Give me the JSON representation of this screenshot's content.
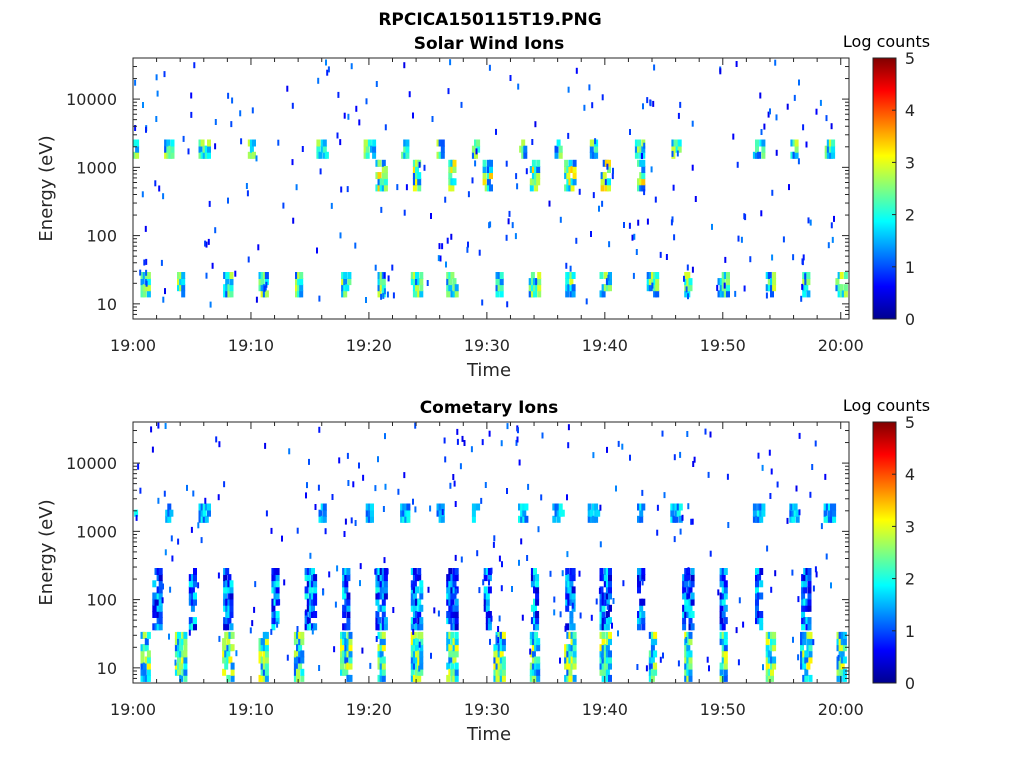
{
  "figure": {
    "title": "RPCICA150115T19.PNG"
  },
  "chart_data": [
    {
      "type": "heatmap",
      "title": "Solar Wind Ions",
      "xlabel": "Time",
      "ylabel": "Energy (eV)",
      "x_tick_labels": [
        "19:00",
        "19:10",
        "19:20",
        "19:30",
        "19:40",
        "19:50",
        "20:00"
      ],
      "xlim": [
        "19:00",
        "20:00"
      ],
      "y_scale": "log",
      "y_tick_values": [
        10,
        100,
        1000,
        10000
      ],
      "y_tick_labels": [
        "10",
        "100",
        "1000",
        "10000"
      ],
      "ylim": [
        6,
        40000
      ],
      "colorbar": {
        "label": "Log counts",
        "range": [
          0,
          5
        ],
        "tick_labels": [
          "0",
          "1",
          "2",
          "3",
          "4",
          "5"
        ],
        "colormap": "jet"
      },
      "approx_features": [
        {
          "energy_eV": [
            14,
            28
          ],
          "log_counts": [
            1,
            3
          ],
          "description": "low-energy band, every ~3.3 min",
          "times": [
            "19:01",
            "19:04",
            "19:08",
            "19:11",
            "19:14",
            "19:18",
            "19:21",
            "19:24",
            "19:27",
            "19:31",
            "19:34",
            "19:37",
            "19:40",
            "19:44",
            "19:47",
            "19:50",
            "19:54",
            "19:57",
            "20:00"
          ]
        },
        {
          "energy_eV": [
            1500,
            2500
          ],
          "log_counts": [
            1,
            3
          ],
          "times": [
            "19:00",
            "19:03",
            "19:06",
            "19:10",
            "19:16",
            "19:20",
            "19:23",
            "19:26",
            "19:29",
            "19:33",
            "19:36",
            "19:39",
            "19:43",
            "19:46",
            "19:53",
            "19:56",
            "19:59"
          ]
        },
        {
          "energy_eV": [
            500,
            1200
          ],
          "log_counts": [
            1,
            3.5
          ],
          "times": [
            "19:21",
            "19:24",
            "19:27",
            "19:30",
            "19:34",
            "19:37",
            "19:40",
            "19:43"
          ]
        }
      ]
    },
    {
      "type": "heatmap",
      "title": "Cometary Ions",
      "xlabel": "Time",
      "ylabel": "Energy (eV)",
      "x_tick_labels": [
        "19:00",
        "19:10",
        "19:20",
        "19:30",
        "19:40",
        "19:50",
        "20:00"
      ],
      "xlim": [
        "19:00",
        "20:00"
      ],
      "y_scale": "log",
      "y_tick_values": [
        10,
        100,
        1000,
        10000
      ],
      "y_tick_labels": [
        "10",
        "100",
        "1000",
        "10000"
      ],
      "ylim": [
        6,
        40000
      ],
      "colorbar": {
        "label": "Log counts",
        "range": [
          0,
          5
        ],
        "tick_labels": [
          "0",
          "1",
          "2",
          "3",
          "4",
          "5"
        ],
        "colormap": "jet"
      },
      "approx_features": [
        {
          "energy_eV": [
            7,
            35
          ],
          "log_counts": [
            1,
            3.2
          ],
          "description": "low-energy band, every ~3.3 min",
          "times": [
            "19:01",
            "19:04",
            "19:08",
            "19:11",
            "19:14",
            "19:18",
            "19:21",
            "19:24",
            "19:27",
            "19:31",
            "19:34",
            "19:37",
            "19:40",
            "19:44",
            "19:47",
            "19:50",
            "19:54",
            "19:57",
            "20:00"
          ]
        },
        {
          "energy_eV": [
            40,
            300
          ],
          "log_counts": [
            0.3,
            2
          ],
          "times": [
            "19:02",
            "19:05",
            "19:08",
            "19:12",
            "19:15",
            "19:18",
            "19:21",
            "19:24",
            "19:27",
            "19:30",
            "19:34",
            "19:37",
            "19:40",
            "19:43",
            "19:47",
            "19:50",
            "19:53",
            "19:57"
          ]
        },
        {
          "energy_eV": [
            1500,
            2500
          ],
          "log_counts": [
            1,
            2
          ],
          "times": [
            "19:00",
            "19:03",
            "19:06",
            "19:16",
            "19:20",
            "19:23",
            "19:26",
            "19:29",
            "19:33",
            "19:36",
            "19:39",
            "19:43",
            "19:46",
            "19:53",
            "19:56",
            "19:59"
          ]
        }
      ]
    }
  ]
}
